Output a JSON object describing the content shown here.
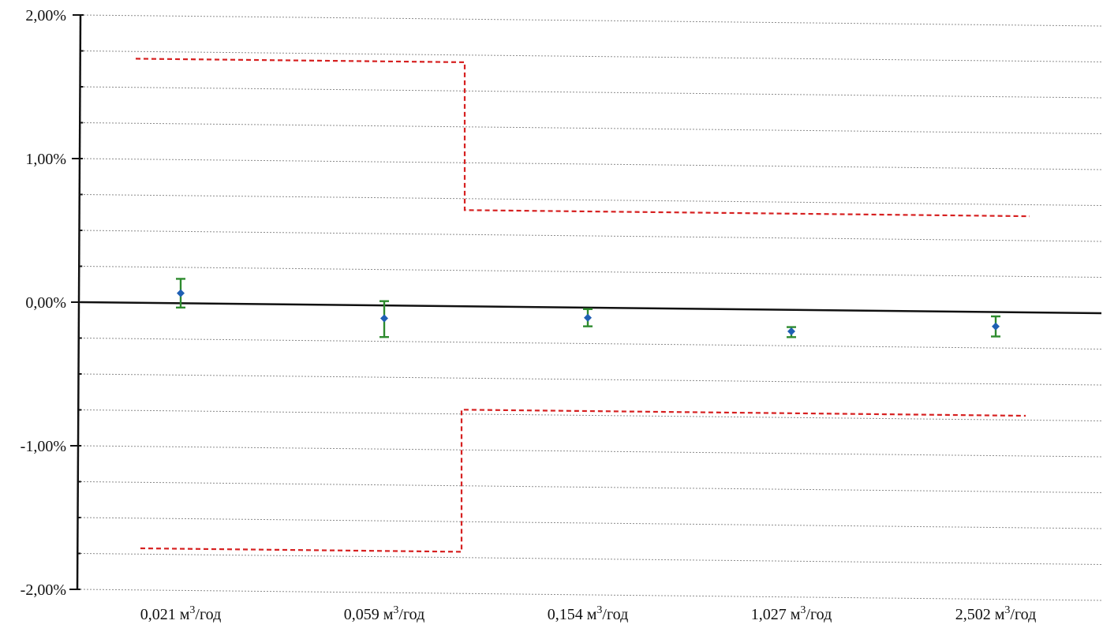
{
  "chart_data": {
    "type": "scatter",
    "title": "",
    "xlabel": "",
    "ylabel": "",
    "ylim": [
      -2.0,
      2.0
    ],
    "y_ticks": [
      2.0,
      1.0,
      0.0,
      -1.0,
      -2.0
    ],
    "y_tick_labels": [
      "2,00%",
      "1,00%",
      "0,00%",
      "-1,00%",
      "-2,00%"
    ],
    "categories": [
      {
        "value": "0,021",
        "unit": "м",
        "sup": "3",
        "rest": "/год"
      },
      {
        "value": "0,059",
        "unit": "м",
        "sup": "3",
        "rest": "/год"
      },
      {
        "value": "0,154",
        "unit": "м",
        "sup": "3",
        "rest": "/год"
      },
      {
        "value": "1,027",
        "unit": "м",
        "sup": "3",
        "rest": "/год"
      },
      {
        "value": "2,502",
        "unit": "м",
        "sup": "3",
        "rest": "/год"
      }
    ],
    "grid": true,
    "series": [
      {
        "values": [
          0.07,
          -0.09,
          -0.07,
          -0.15,
          -0.1
        ],
        "err_low": [
          -0.03,
          -0.22,
          -0.13,
          -0.19,
          -0.17
        ],
        "err_high": [
          0.17,
          0.03,
          -0.01,
          -0.12,
          -0.03
        ],
        "marker_color": "#1f5fb4",
        "errorbar_color": "#2e8b2e"
      }
    ],
    "limit_upper": {
      "segments": [
        {
          "from": 0,
          "to": 1,
          "value": 1.7
        },
        {
          "from": 1,
          "to": 4,
          "value": 0.67
        }
      ],
      "color": "#d62020"
    },
    "limit_lower": {
      "segments": [
        {
          "from": 0,
          "to": 1,
          "value": -1.71
        },
        {
          "from": 1,
          "to": 4,
          "value": -0.72
        }
      ],
      "color": "#d62020"
    }
  }
}
